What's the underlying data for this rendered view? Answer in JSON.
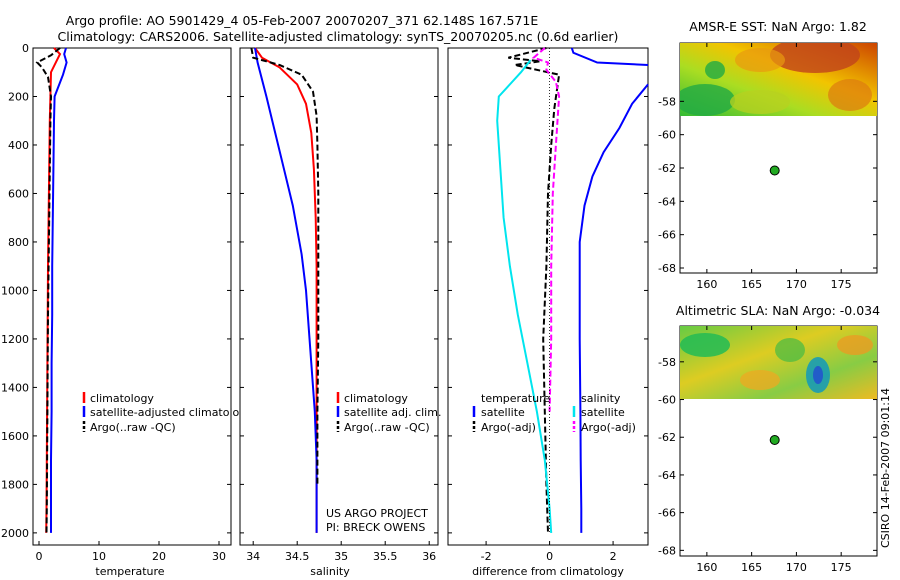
{
  "header": {
    "title_line1": "Argo profile: AO 5901429_4 05-Feb-2007 20070207_371 62.148S 167.571E",
    "title_line2": "Climatology: CARS2006. Satellite-adjusted climatology: synTS_20070205.nc (0.6d earlier)"
  },
  "footer": {
    "side_stamp": "CSIRO 14-Feb-2007 09:01:14"
  },
  "colors": {
    "climatology": "#ff0000",
    "satellite": "#0000ff",
    "argo": "#000000",
    "temp_satellite_diff": "#00e5ee",
    "salinity_argo_diff": "#ff00ff",
    "map_marker": "#22aa22"
  },
  "chart_data": [
    {
      "id": "temperature",
      "type": "line",
      "xlabel": "temperature",
      "xlim": [
        -1,
        32
      ],
      "ylim": [
        2050,
        0
      ],
      "xticks": [
        0,
        10,
        20,
        30
      ],
      "yticks": [
        0,
        200,
        400,
        600,
        800,
        1000,
        1200,
        1400,
        1600,
        1800,
        2000
      ],
      "legend": {
        "placement": "lower-right",
        "entries": [
          "climatology",
          "satellite-adjusted climatology",
          "Argo(..raw -QC)"
        ]
      },
      "series": [
        {
          "name": "climatology",
          "color": "#ff0000",
          "x": [
            2.5,
            3.5,
            3.0,
            2.0,
            1.9,
            1.8,
            1.7,
            1.6,
            1.5,
            1.45,
            1.4,
            1.35,
            1.3,
            1.25,
            1.2
          ],
          "y": [
            0,
            25,
            50,
            100,
            200,
            300,
            500,
            700,
            900,
            1100,
            1300,
            1500,
            1700,
            1900,
            2000
          ]
        },
        {
          "name": "satellite-adjusted climatology",
          "color": "#0000ff",
          "x": [
            4.5,
            4.2,
            4.6,
            4.0,
            2.6,
            2.5,
            2.4,
            2.3,
            2.2,
            2.2,
            2.1,
            2.1,
            2.0,
            2.0,
            2.0
          ],
          "y": [
            0,
            25,
            60,
            110,
            200,
            300,
            500,
            700,
            900,
            1100,
            1300,
            1500,
            1700,
            1900,
            2000
          ]
        },
        {
          "name": "Argo(..raw -QC)",
          "color": "#000000",
          "dash": true,
          "x": [
            3.5,
            2.0,
            -0.3,
            0.5,
            1.5,
            2.0,
            1.9,
            1.8,
            1.7,
            1.6,
            1.5,
            1.45,
            1.4,
            1.35,
            1.3,
            1.25
          ],
          "y": [
            0,
            30,
            60,
            80,
            120,
            200,
            300,
            500,
            700,
            900,
            1100,
            1300,
            1500,
            1700,
            1900,
            2000
          ]
        }
      ]
    },
    {
      "id": "salinity",
      "type": "line",
      "xlabel": "salinity",
      "xlim": [
        33.85,
        36.1
      ],
      "ylim": [
        2050,
        0
      ],
      "xticks": [
        34,
        34.5,
        35,
        35.5,
        36
      ],
      "legend": {
        "placement": "lower-right",
        "entries": [
          "climatology",
          "satellite adj. clim.",
          "Argo(..raw -QC)"
        ]
      },
      "annotations": [
        "US ARGO PROJECT",
        "PI: BRECK OWENS"
      ],
      "series": [
        {
          "name": "climatology",
          "color": "#ff0000",
          "x": [
            34.02,
            34.1,
            34.3,
            34.5,
            34.6,
            34.66,
            34.69,
            34.71,
            34.72,
            34.72,
            34.72,
            34.72,
            34.72,
            34.72
          ],
          "y": [
            0,
            40,
            80,
            150,
            230,
            350,
            500,
            700,
            900,
            1100,
            1300,
            1500,
            1800,
            2000
          ]
        },
        {
          "name": "satellite adj. clim.",
          "color": "#0000ff",
          "x": [
            34.02,
            34.05,
            34.15,
            34.25,
            34.35,
            34.45,
            34.55,
            34.6,
            34.66,
            34.7,
            34.72,
            34.72,
            34.72
          ],
          "y": [
            0,
            60,
            200,
            350,
            500,
            650,
            850,
            1000,
            1300,
            1500,
            1700,
            1900,
            2000
          ]
        },
        {
          "name": "Argo(..raw -QC)",
          "color": "#000000",
          "dash": true,
          "x": [
            33.98,
            34.0,
            34.3,
            34.55,
            34.68,
            34.72,
            34.73,
            34.74,
            34.74,
            34.74,
            34.73,
            34.73
          ],
          "y": [
            0,
            40,
            70,
            110,
            180,
            280,
            400,
            600,
            900,
            1200,
            1500,
            1800
          ]
        }
      ]
    },
    {
      "id": "difference",
      "type": "line",
      "xlabel": "difference from climatology",
      "xlim": [
        -3.2,
        3.1
      ],
      "ylim": [
        2050,
        0
      ],
      "xticks": [
        -2,
        0,
        2
      ],
      "legend": {
        "placement": "lower-right",
        "headers": [
          "temperature",
          "salinity"
        ],
        "entries": [
          "satellite",
          "Argo(-adj)",
          "satellite",
          "Argo(-adj)"
        ]
      },
      "series": [
        {
          "name": "temperature satellite",
          "color": "#0000ff",
          "x": [
            0.7,
            0.75,
            1.5,
            3.1
          ],
          "y": [
            0,
            20,
            60,
            70
          ]
        },
        {
          "name": "temperature satellite deep",
          "color": "#0000ff",
          "x": [
            3.1,
            2.6,
            2.2,
            1.7,
            1.35,
            1.1,
            0.95,
            0.95,
            0.95,
            0.97,
            0.98,
            1.0,
            1.0
          ],
          "y": [
            150,
            230,
            330,
            430,
            530,
            650,
            800,
            1000,
            1200,
            1500,
            1700,
            1900,
            2000
          ]
        },
        {
          "name": "temperature Argo(-adj)",
          "color": "#000000",
          "dash": true,
          "x": [
            -0.1,
            -1.3,
            -0.3,
            -1.1,
            0.3,
            0.15,
            0.05,
            -0.05,
            -0.1,
            -0.2,
            -0.15,
            -0.1,
            -0.05
          ],
          "y": [
            0,
            40,
            55,
            70,
            110,
            250,
            400,
            600,
            900,
            1200,
            1500,
            1800,
            2000
          ]
        },
        {
          "name": "salinity satellite",
          "color": "#00e5ee",
          "x": [
            -0.6,
            -0.9,
            -1.6,
            -1.65,
            -1.55,
            -1.45,
            -1.25,
            -1.0,
            -0.7,
            -0.4,
            -0.15,
            0.0,
            0.05
          ],
          "y": [
            50,
            100,
            200,
            300,
            500,
            700,
            900,
            1100,
            1300,
            1500,
            1700,
            1900,
            2000
          ]
        },
        {
          "name": "salinity Argo(-adj)",
          "color": "#ff00ff",
          "dash": true,
          "x": [
            -0.15,
            -0.5,
            -0.05,
            -0.1,
            0.2,
            0.3,
            0.25,
            0.2,
            0.1,
            0.05,
            0.05,
            0.0
          ],
          "y": [
            0,
            40,
            60,
            90,
            140,
            200,
            300,
            400,
            600,
            900,
            1200,
            1500
          ]
        },
        {
          "name": "zero line",
          "color": "#000000",
          "dotted": true,
          "x": [
            0,
            0
          ],
          "y": [
            0,
            2000
          ]
        }
      ]
    },
    {
      "id": "amsr-e-sst",
      "type": "heatmap",
      "title": "AMSR-E SST: NaN Argo: 1.82",
      "xlim": [
        157,
        179
      ],
      "ylim": [
        -68.3,
        -54.5
      ],
      "xticks": [
        160,
        165,
        170,
        175
      ],
      "yticks": [
        -58,
        -60,
        -62,
        -64,
        -66,
        -68
      ],
      "data_extent_lat": [
        -60,
        -54.5
      ],
      "marker": {
        "lon": 167.571,
        "lat": -62.148
      }
    },
    {
      "id": "altimetric-sla",
      "type": "heatmap",
      "title": "Altimetric SLA: NaN Argo: -0.034",
      "xlim": [
        157,
        179
      ],
      "ylim": [
        -68.3,
        -56.1
      ],
      "xticks": [
        160,
        165,
        170,
        175
      ],
      "yticks": [
        -58,
        -60,
        -62,
        -64,
        -66,
        -68
      ],
      "data_extent_lat": [
        -60,
        -56.1
      ],
      "marker": {
        "lon": 167.571,
        "lat": -62.148
      }
    }
  ]
}
